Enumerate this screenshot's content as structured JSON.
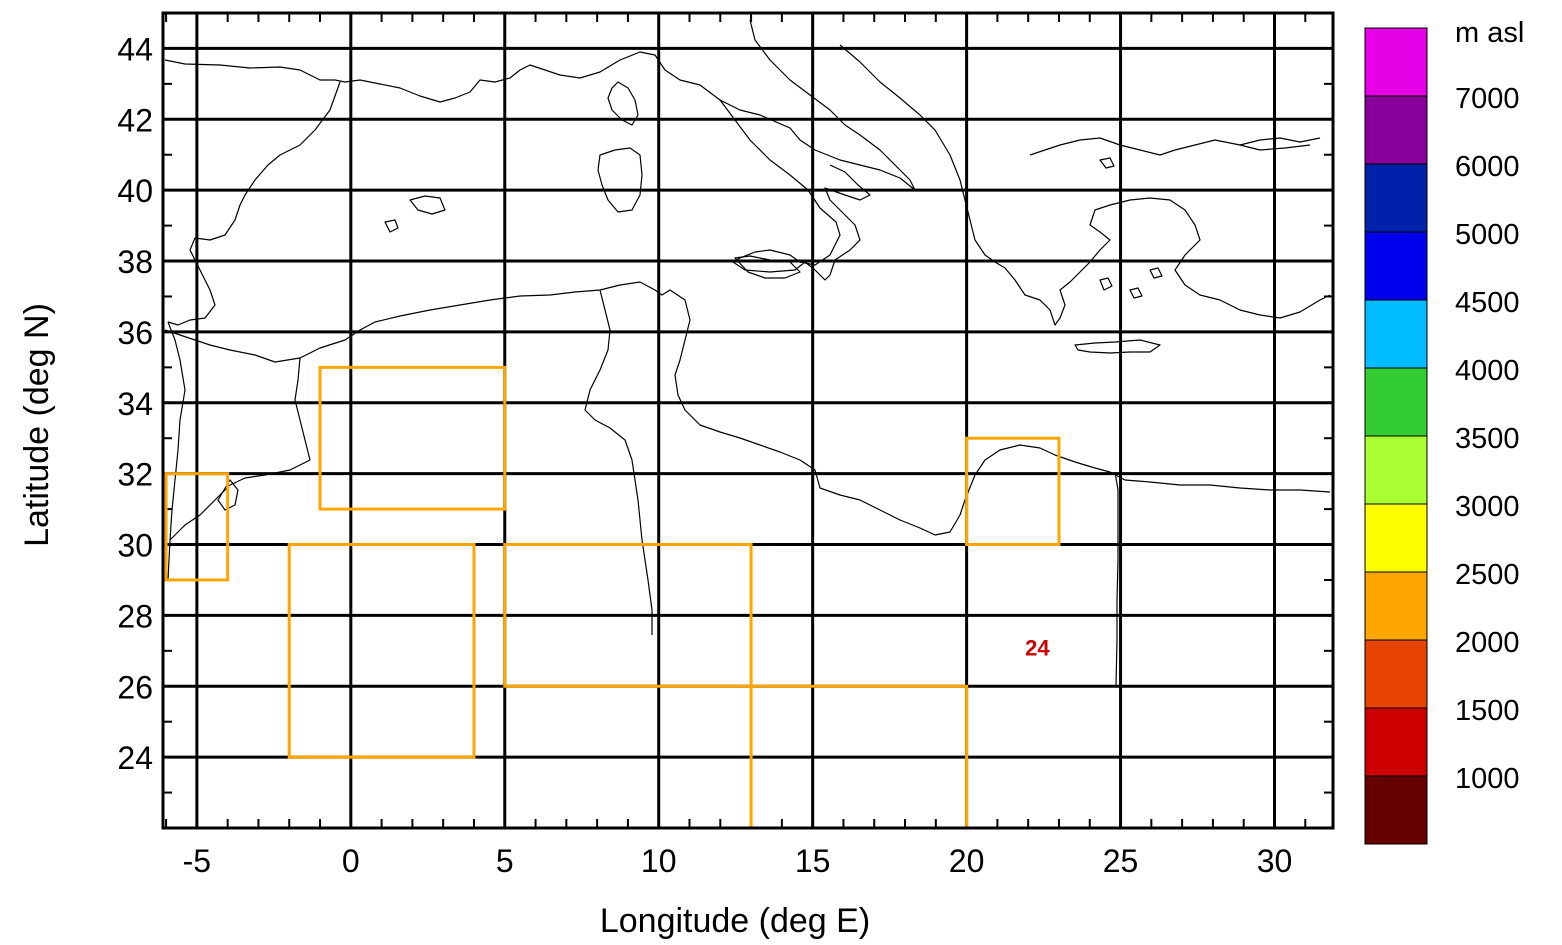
{
  "map": {
    "xlabel": "Longitude (deg E)",
    "ylabel": "Latitude (deg N)",
    "xlim": [
      -6,
      32
    ],
    "ylim": [
      22,
      45
    ],
    "x_ticks": [
      -5,
      0,
      5,
      10,
      15,
      20,
      25,
      30
    ],
    "y_ticks": [
      24,
      26,
      28,
      30,
      32,
      34,
      36,
      38,
      40,
      42,
      44
    ],
    "grid": true,
    "grid_color": "#000000",
    "box_color": "#FFA500",
    "boxes": [
      {
        "lon_min": -6,
        "lon_max": -4,
        "lat_min": 29,
        "lat_max": 32
      },
      {
        "lon_min": -1,
        "lon_max": 5,
        "lat_min": 31,
        "lat_max": 35
      },
      {
        "lon_min": -2,
        "lon_max": 4,
        "lat_min": 24,
        "lat_max": 30
      },
      {
        "lon_min": 5,
        "lon_max": 13,
        "lat_min": 26,
        "lat_max": 30
      },
      {
        "lon_min": 13,
        "lon_max": 20,
        "lat_min": 22,
        "lat_max": 26
      },
      {
        "lon_min": 20,
        "lon_max": 23,
        "lat_min": 30,
        "lat_max": 33
      }
    ],
    "marker": {
      "label": "24",
      "lon": 22.3,
      "lat": 27.1,
      "color": "#CC0000"
    }
  },
  "colorbar": {
    "title": "m asl",
    "labels": [
      "7000",
      "6000",
      "5000",
      "4500",
      "4000",
      "3500",
      "3000",
      "2500",
      "2000",
      "1500",
      "1000"
    ],
    "colors": [
      "#E600E6",
      "#880099",
      "#0022AA",
      "#0000EE",
      "#00BBFF",
      "#33CC33",
      "#AAFF33",
      "#FFFF00",
      "#FFA500",
      "#E64400",
      "#CC0000",
      "#660000"
    ]
  }
}
